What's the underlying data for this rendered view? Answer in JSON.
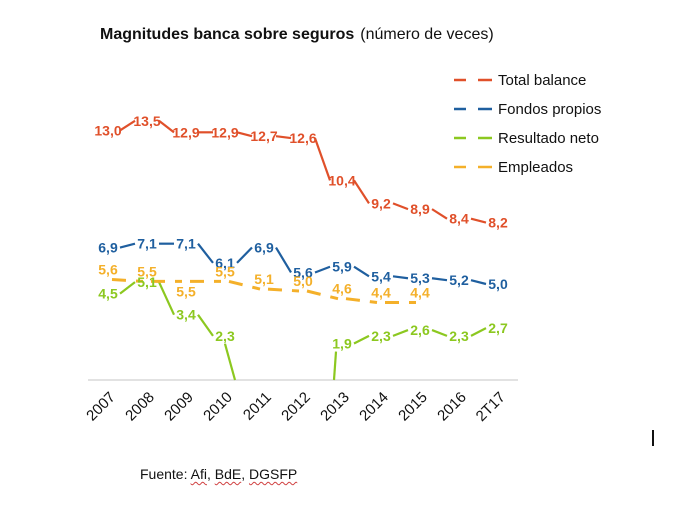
{
  "chart_data": {
    "type": "line",
    "title": "Magnitudes banca sobre seguros",
    "subtitle": "(número de veces)",
    "xlabel": "",
    "ylabel": "",
    "categories": [
      "2007",
      "2008",
      "2009",
      "2010",
      "2011",
      "2012",
      "2013",
      "2014",
      "2015",
      "2016",
      "2T17"
    ],
    "ylim": [
      0,
      14.5
    ],
    "grid": false,
    "legend_position": "top-right",
    "series": [
      {
        "name": "Total balance",
        "color": "#e0502a",
        "dashed": false,
        "values": [
          13.0,
          13.5,
          12.9,
          12.9,
          12.7,
          12.6,
          10.4,
          9.2,
          8.9,
          8.4,
          8.2
        ],
        "labels": [
          "13,0",
          "13,5",
          "12,9",
          "12,9",
          "12,7",
          "12,6",
          "10,4",
          "9,2",
          "8,9",
          "8,4",
          "8,2"
        ]
      },
      {
        "name": "Fondos propios",
        "color": "#1f5f9f",
        "dashed": false,
        "values": [
          6.9,
          7.1,
          7.1,
          6.1,
          6.9,
          5.6,
          5.9,
          5.4,
          5.3,
          5.2,
          5.0
        ],
        "labels": [
          "6,9",
          "7,1",
          "7,1",
          "6,1",
          "6,9",
          "5,6",
          "5,9",
          "5,4",
          "5,3",
          "5,2",
          "5,0"
        ]
      },
      {
        "name": "Resultado neto",
        "color": "#8cc820",
        "dashed": false,
        "values": [
          4.5,
          5.1,
          3.4,
          2.3,
          null,
          null,
          1.9,
          2.3,
          2.6,
          2.3,
          2.7
        ],
        "labels": [
          "4,5",
          "5,1",
          "3,4",
          "2,3",
          "",
          "",
          "1,9",
          "2,3",
          "2,6",
          "2,3",
          "2,7"
        ],
        "note": "2011 and 2012 below axis (clipped)"
      },
      {
        "name": "Empleados",
        "color": "#f4b02a",
        "dashed": true,
        "values": [
          5.6,
          5.5,
          5.5,
          5.5,
          5.1,
          5.0,
          4.6,
          4.4,
          4.4,
          null,
          null
        ],
        "labels": [
          "5,6",
          "5,5",
          "5,5",
          "5,5",
          "5,1",
          "5,0",
          "4,6",
          "4,4",
          "4,4",
          "",
          ""
        ]
      }
    ]
  },
  "source": {
    "prefix": "Fuente:",
    "items": [
      "Afi",
      "BdE",
      "DGSFP"
    ]
  }
}
